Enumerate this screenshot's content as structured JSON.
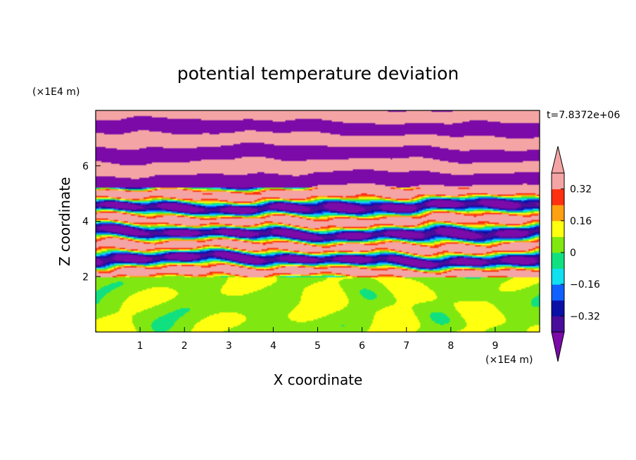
{
  "chart_data": {
    "type": "heatmap",
    "title": "potential temperature deviation",
    "xlabel": "X coordinate",
    "ylabel": "Z coordinate",
    "x_unit": "(×1E4 m)",
    "y_unit": "(×1E4 m)",
    "time_label": "t=7.8372e+06",
    "xlim": [
      0,
      10
    ],
    "ylim": [
      0,
      8
    ],
    "x_ticks": [
      "1",
      "2",
      "3",
      "4",
      "5",
      "6",
      "7",
      "8",
      "9"
    ],
    "y_ticks": [
      "2",
      "4",
      "6"
    ],
    "colorbar": {
      "levels": [
        -0.4,
        -0.32,
        -0.24,
        -0.16,
        -0.08,
        0,
        0.08,
        0.16,
        0.24,
        0.32,
        0.4
      ],
      "tick_labels": [
        "0.32",
        "0.16",
        "0",
        "−0.16",
        "−0.32"
      ],
      "tick_values": [
        0.32,
        0.16,
        0,
        -0.16,
        -0.32
      ],
      "colors": [
        "#7b0aa8",
        "#4a0c9a",
        "#0a10a6",
        "#1060ff",
        "#10e0f0",
        "#10e080",
        "#80e810",
        "#ffff10",
        "#ffa010",
        "#ff3010",
        "#f4a4a4",
        "#f4a4a4"
      ],
      "under_color": "#7b0aa8",
      "over_color": "#f4a4a4",
      "extend": "both"
    },
    "field_description": {
      "lower_layer_zrange": [
        0,
        2
      ],
      "lower_layer_values": [
        0.0,
        0.08
      ],
      "stratified_layer_zrange": [
        2,
        8
      ],
      "stratified_extremes": [
        -0.4,
        0.4
      ]
    }
  }
}
